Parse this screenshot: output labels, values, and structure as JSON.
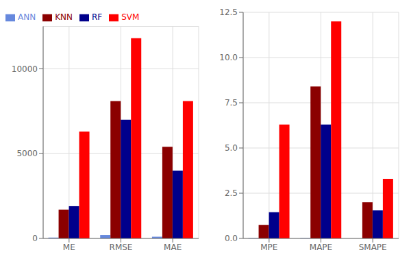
{
  "chart_data": [
    {
      "type": "bar",
      "categories": [
        "ME",
        "RMSE",
        "MAE"
      ],
      "series": [
        {
          "name": "ANN",
          "color": "#6688DD",
          "values": [
            50,
            200,
            100
          ]
        },
        {
          "name": "KNN",
          "color": "#8B0000",
          "values": [
            1700,
            8100,
            5400
          ]
        },
        {
          "name": "RF",
          "color": "#00008B",
          "values": [
            1900,
            7000,
            4000
          ]
        },
        {
          "name": "SVM",
          "color": "#FF0000",
          "values": [
            6300,
            11800,
            8100
          ]
        }
      ],
      "ylim": [
        0,
        12500
      ],
      "yticks": [
        0,
        5000,
        10000
      ],
      "grid": true,
      "legend": "upper left"
    },
    {
      "type": "bar",
      "categories": [
        "MPE",
        "MAPE",
        "SMAPE"
      ],
      "series": [
        {
          "name": "ANN",
          "color": "#6688DD",
          "values": [
            0.02,
            0.02,
            0.0
          ]
        },
        {
          "name": "KNN",
          "color": "#8B0000",
          "values": [
            0.75,
            8.4,
            2.0
          ]
        },
        {
          "name": "RF",
          "color": "#00008B",
          "values": [
            1.45,
            6.3,
            1.55
          ]
        },
        {
          "name": "SVM",
          "color": "#FF0000",
          "values": [
            6.3,
            12.0,
            3.3
          ]
        }
      ],
      "ylim": [
        0,
        12.5
      ],
      "yticks": [
        {
          "value": 0,
          "label": "0.0"
        },
        2.5,
        {
          "value": 5,
          "label": "5.0"
        },
        7.5,
        {
          "value": 10,
          "label": "10.0"
        },
        12.5
      ],
      "grid": true
    }
  ]
}
